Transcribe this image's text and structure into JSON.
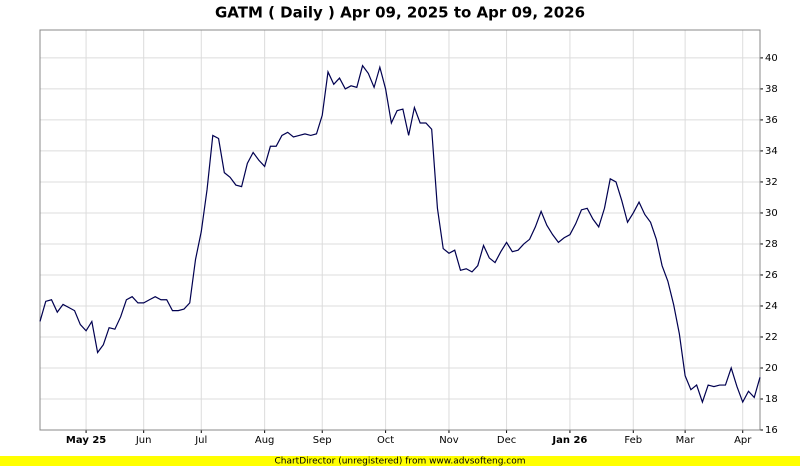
{
  "chart_data": {
    "type": "line",
    "title": "GATM ( Daily ) Apr 09, 2025 to Apr 09, 2026",
    "categories": [
      null,
      null,
      null,
      null,
      null,
      null,
      null,
      null,
      "May 25",
      null,
      null,
      null,
      null,
      null,
      null,
      null,
      null,
      null,
      "Jun",
      null,
      null,
      null,
      null,
      null,
      null,
      null,
      null,
      null,
      "Jul",
      null,
      null,
      null,
      null,
      null,
      null,
      null,
      null,
      null,
      null,
      "Aug",
      null,
      null,
      null,
      null,
      null,
      null,
      null,
      null,
      null,
      "Sep",
      null,
      null,
      null,
      null,
      null,
      null,
      null,
      null,
      null,
      null,
      "Oct",
      null,
      null,
      null,
      null,
      null,
      null,
      null,
      null,
      null,
      null,
      "Nov",
      null,
      null,
      null,
      null,
      null,
      null,
      null,
      null,
      null,
      "Dec",
      null,
      null,
      null,
      null,
      null,
      null,
      null,
      null,
      null,
      null,
      "Jan 26",
      null,
      null,
      null,
      null,
      null,
      null,
      null,
      null,
      null,
      null,
      "Feb",
      null,
      null,
      null,
      null,
      null,
      null,
      null,
      null,
      "Mar",
      null,
      null,
      null,
      null,
      null,
      null,
      null,
      null,
      null,
      "Apr",
      null,
      null,
      null
    ],
    "values": [
      23.0,
      24.3,
      24.4,
      23.6,
      24.1,
      23.9,
      23.7,
      22.8,
      22.4,
      23.0,
      21.0,
      21.5,
      22.6,
      22.5,
      23.3,
      24.4,
      24.6,
      24.2,
      24.2,
      24.4,
      24.6,
      24.4,
      24.4,
      23.7,
      23.7,
      23.8,
      24.2,
      27.0,
      28.8,
      31.5,
      35.0,
      34.8,
      32.6,
      32.3,
      31.8,
      31.7,
      33.2,
      33.9,
      33.4,
      33.0,
      34.3,
      34.3,
      35.0,
      35.2,
      34.9,
      35.0,
      35.1,
      35.0,
      35.1,
      36.3,
      39.1,
      38.3,
      38.7,
      38.0,
      38.2,
      38.1,
      39.5,
      39.0,
      38.1,
      39.4,
      38.0,
      35.8,
      36.6,
      36.7,
      35.0,
      36.8,
      35.8,
      35.8,
      35.4,
      30.3,
      27.7,
      27.4,
      27.6,
      26.3,
      26.4,
      26.2,
      26.6,
      27.9,
      27.1,
      26.8,
      27.5,
      28.1,
      27.5,
      27.6,
      28.0,
      28.3,
      29.1,
      30.1,
      29.2,
      28.6,
      28.1,
      28.4,
      28.6,
      29.3,
      30.2,
      30.3,
      29.6,
      29.1,
      30.3,
      32.2,
      32.0,
      30.8,
      29.4,
      30.0,
      30.7,
      29.9,
      29.4,
      28.3,
      26.6,
      25.6,
      24.1,
      22.2,
      19.5,
      18.6,
      18.9,
      17.8,
      18.9,
      18.8,
      18.9,
      18.9,
      20.0,
      18.8,
      17.8,
      18.5,
      18.1,
      19.4
    ],
    "color": "#000050",
    "ylim": [
      16,
      41.8
    ],
    "yticks": [
      16,
      18,
      20,
      22,
      24,
      26,
      28,
      30,
      32,
      34,
      36,
      38,
      40
    ],
    "grid": true,
    "footer": "ChartDirector (unregistered) from www.advsofteng.com"
  }
}
